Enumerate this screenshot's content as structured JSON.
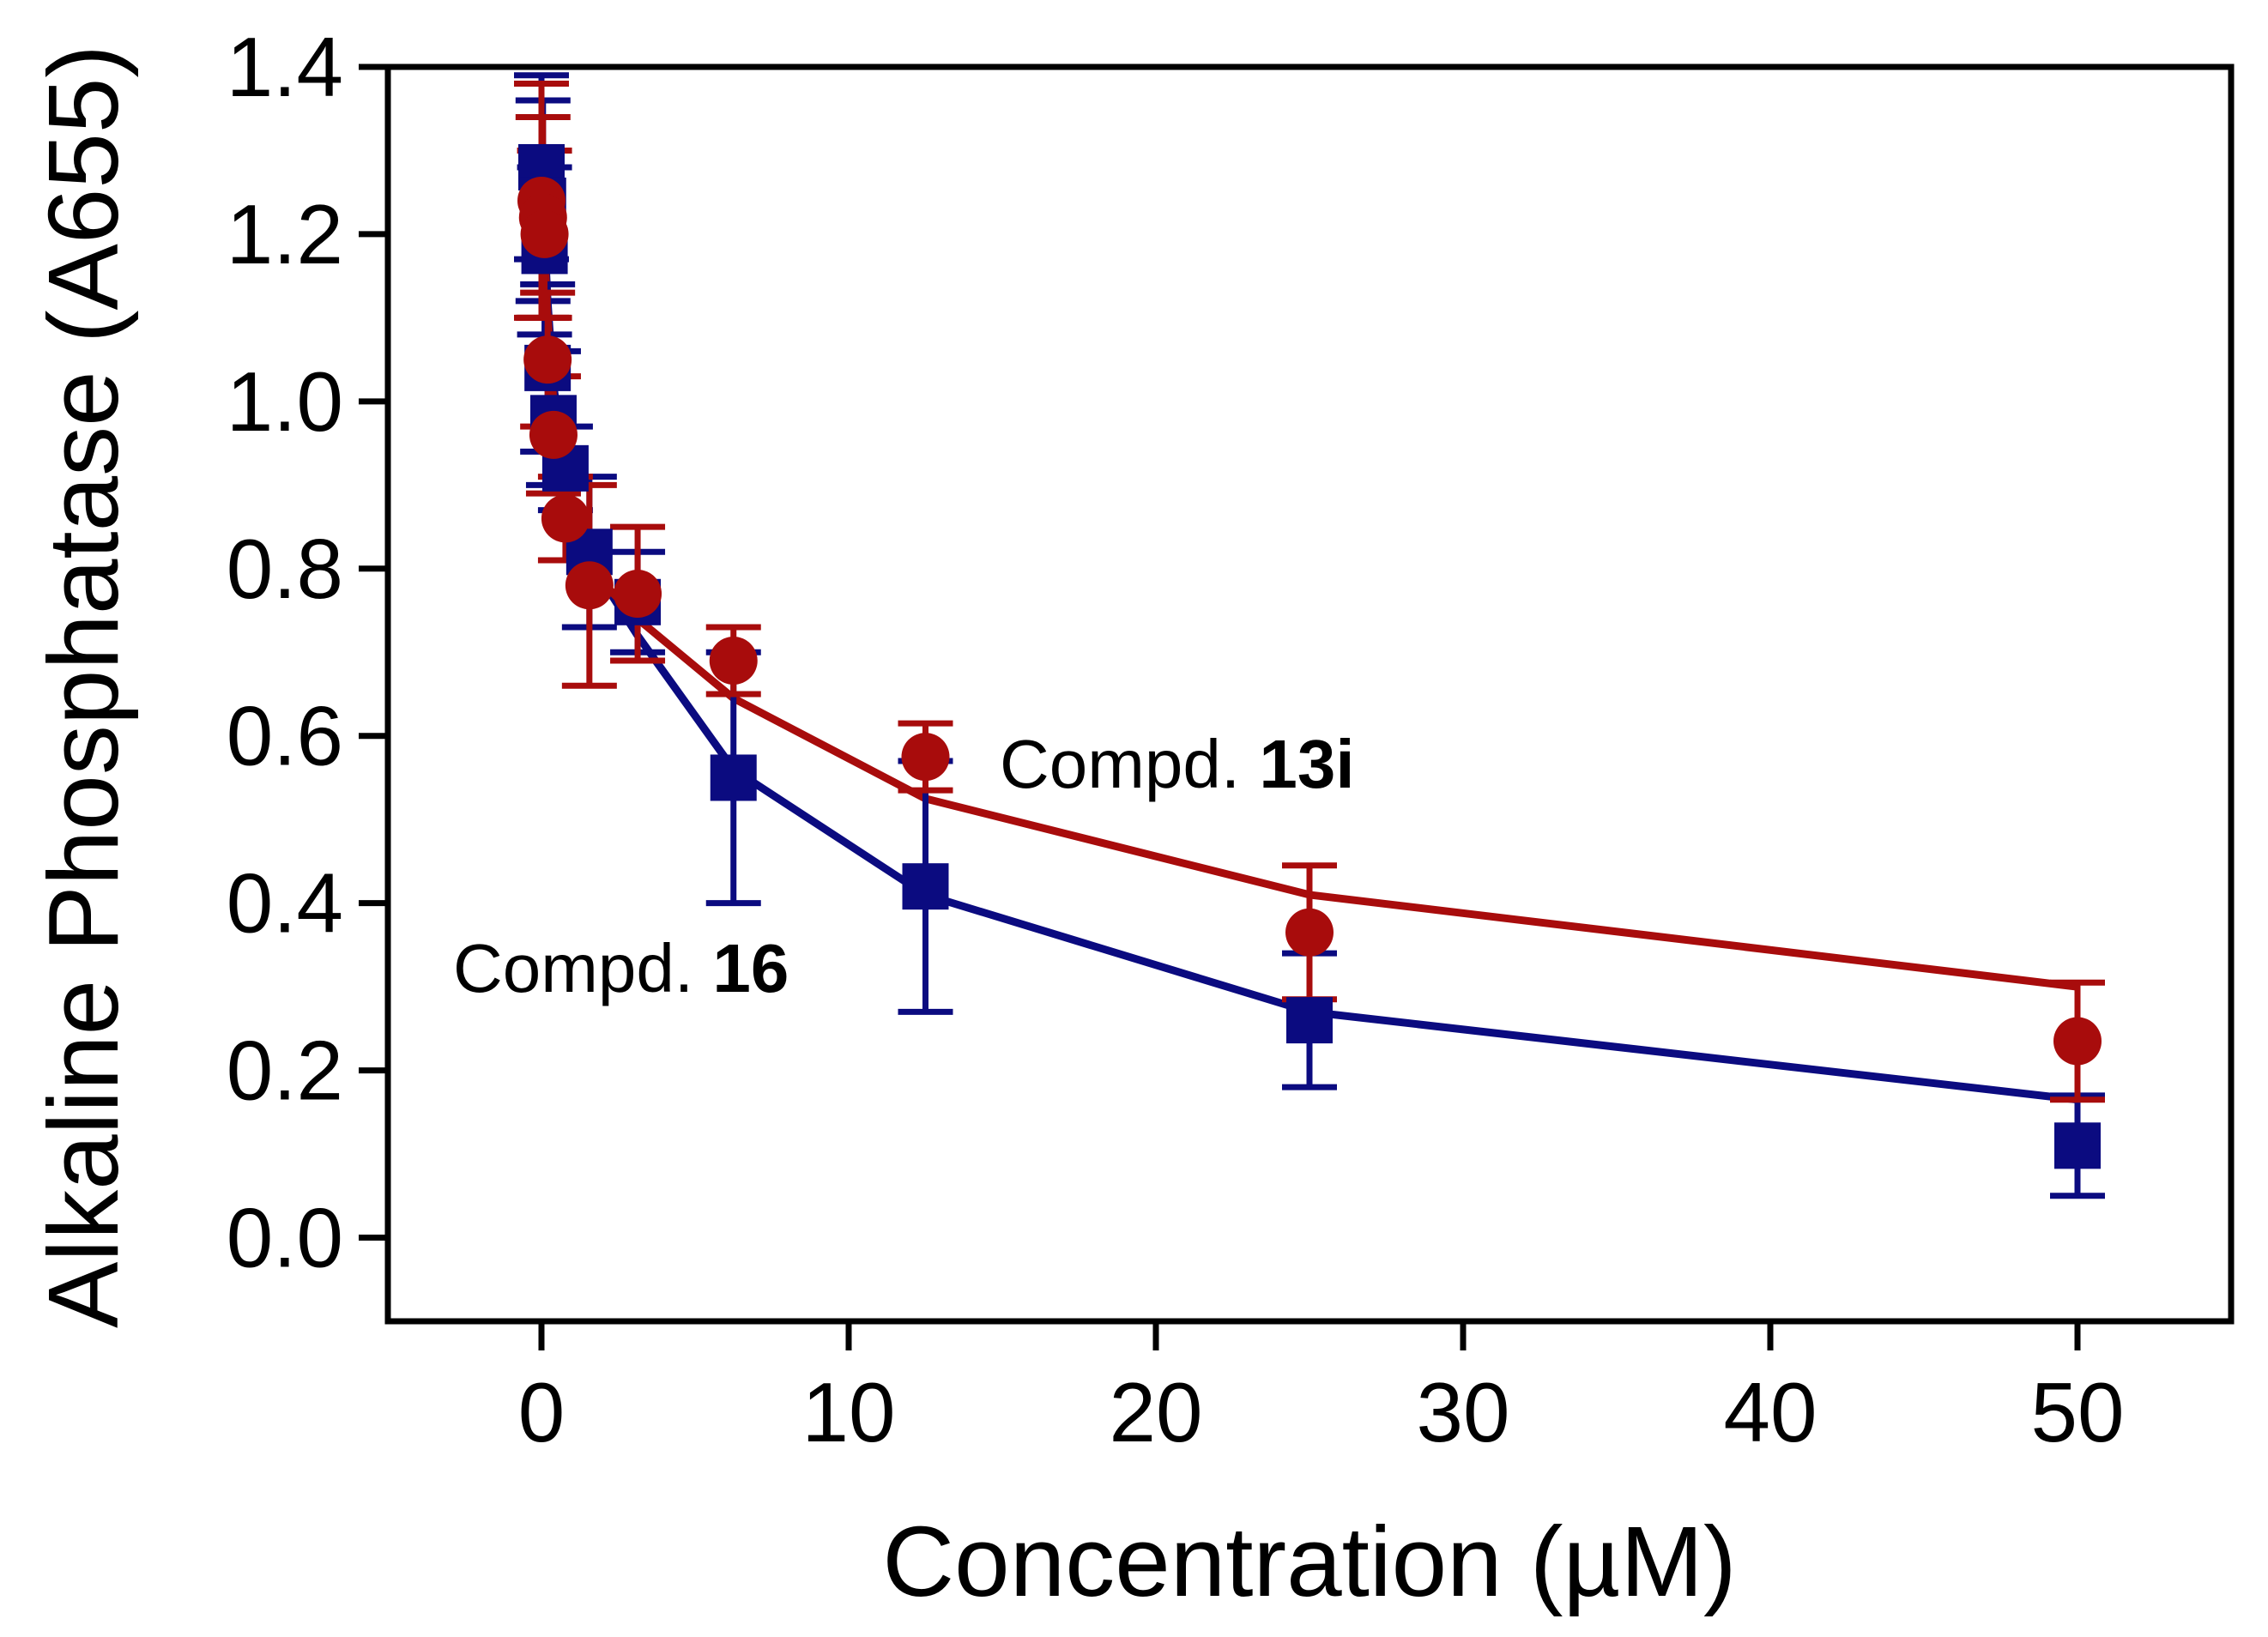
{
  "chart_data": {
    "type": "scatter",
    "title": "",
    "xlabel": "Concentration (µM)",
    "ylabel": "Alkaline Phosphatase (A655)",
    "xlim": [
      -5,
      55
    ],
    "ylim": [
      -0.1,
      1.4
    ],
    "xticks": [
      0,
      10,
      20,
      30,
      40,
      50
    ],
    "yticks": [
      0.0,
      0.2,
      0.4,
      0.6,
      0.8,
      1.0,
      1.2,
      1.4
    ],
    "xtick_labels": [
      "0",
      "10",
      "20",
      "30",
      "40",
      "50"
    ],
    "ytick_labels": [
      "0.0",
      "0.2",
      "0.4",
      "0.6",
      "0.8",
      "1.0",
      "1.2",
      "1.4"
    ],
    "grid": false,
    "series": [
      {
        "name": "Compd. 16",
        "label_prefix": "Compd. ",
        "label_bold": "16",
        "color": "#0b0b80",
        "marker": "square",
        "x": [
          0,
          0.05,
          0.1,
          0.2,
          0.39,
          0.78,
          1.56,
          3.13,
          6.25,
          12.5,
          25,
          50
        ],
        "y": [
          1.28,
          1.24,
          1.18,
          1.04,
          0.98,
          0.92,
          0.82,
          0.76,
          0.55,
          0.42,
          0.26,
          0.11
        ],
        "err": [
          0.11,
          0.12,
          0.1,
          0.1,
          0.08,
          0.05,
          0.09,
          0.06,
          0.15,
          0.15,
          0.08,
          0.06
        ],
        "fit_x": [
          0,
          0.2,
          0.39,
          0.78,
          1.56,
          3.13,
          6.25,
          12.5,
          25,
          50
        ],
        "fit_y": [
          1.27,
          1.12,
          1.02,
          0.91,
          0.81,
          0.72,
          0.56,
          0.41,
          0.27,
          0.165
        ]
      },
      {
        "name": "Compd. 13i",
        "label_prefix": "Compd. ",
        "label_bold": "13i",
        "color": "#a80c0c",
        "marker": "circle",
        "x": [
          0,
          0.05,
          0.1,
          0.2,
          0.39,
          0.78,
          1.56,
          3.13,
          6.25,
          12.5,
          25,
          50
        ],
        "y": [
          1.24,
          1.22,
          1.2,
          1.05,
          0.96,
          0.86,
          0.78,
          0.77,
          0.69,
          0.575,
          0.365,
          0.235
        ],
        "err": [
          0.14,
          0.12,
          0.1,
          0.08,
          0.07,
          0.05,
          0.12,
          0.08,
          0.04,
          0.04,
          0.08,
          0.07
        ],
        "fit_x": [
          0,
          0.2,
          0.39,
          0.78,
          1.56,
          3.13,
          6.25,
          12.5,
          25,
          50
        ],
        "fit_y": [
          1.25,
          1.1,
          1.0,
          0.9,
          0.8,
          0.74,
          0.645,
          0.525,
          0.41,
          0.3
        ]
      }
    ]
  }
}
